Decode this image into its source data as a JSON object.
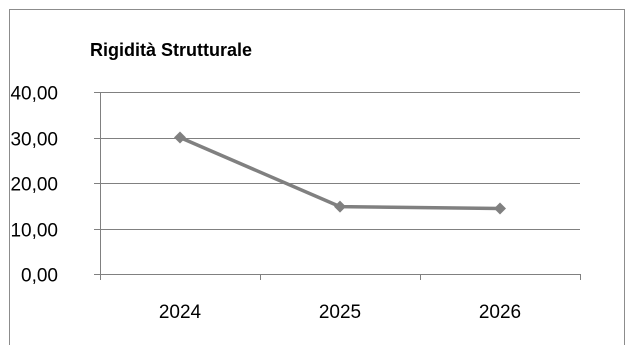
{
  "chart_data": {
    "type": "line",
    "title": "Rigidità Strutturale",
    "xlabel": "",
    "ylabel": "",
    "categories": [
      "2024",
      "2025",
      "2026"
    ],
    "series": [
      {
        "values": [
          30.0,
          14.8,
          14.4
        ]
      }
    ],
    "ylim": [
      0,
      40
    ],
    "ytick_values": [
      0,
      10,
      20,
      30,
      40
    ],
    "ytick_labels": [
      "0,00",
      "10,00",
      "20,00",
      "30,00",
      "40,00"
    ],
    "grid": true,
    "legend": "none",
    "colors": {
      "line": "#808080",
      "marker": "#808080",
      "grid": "#808080",
      "axis": "#808080"
    }
  }
}
